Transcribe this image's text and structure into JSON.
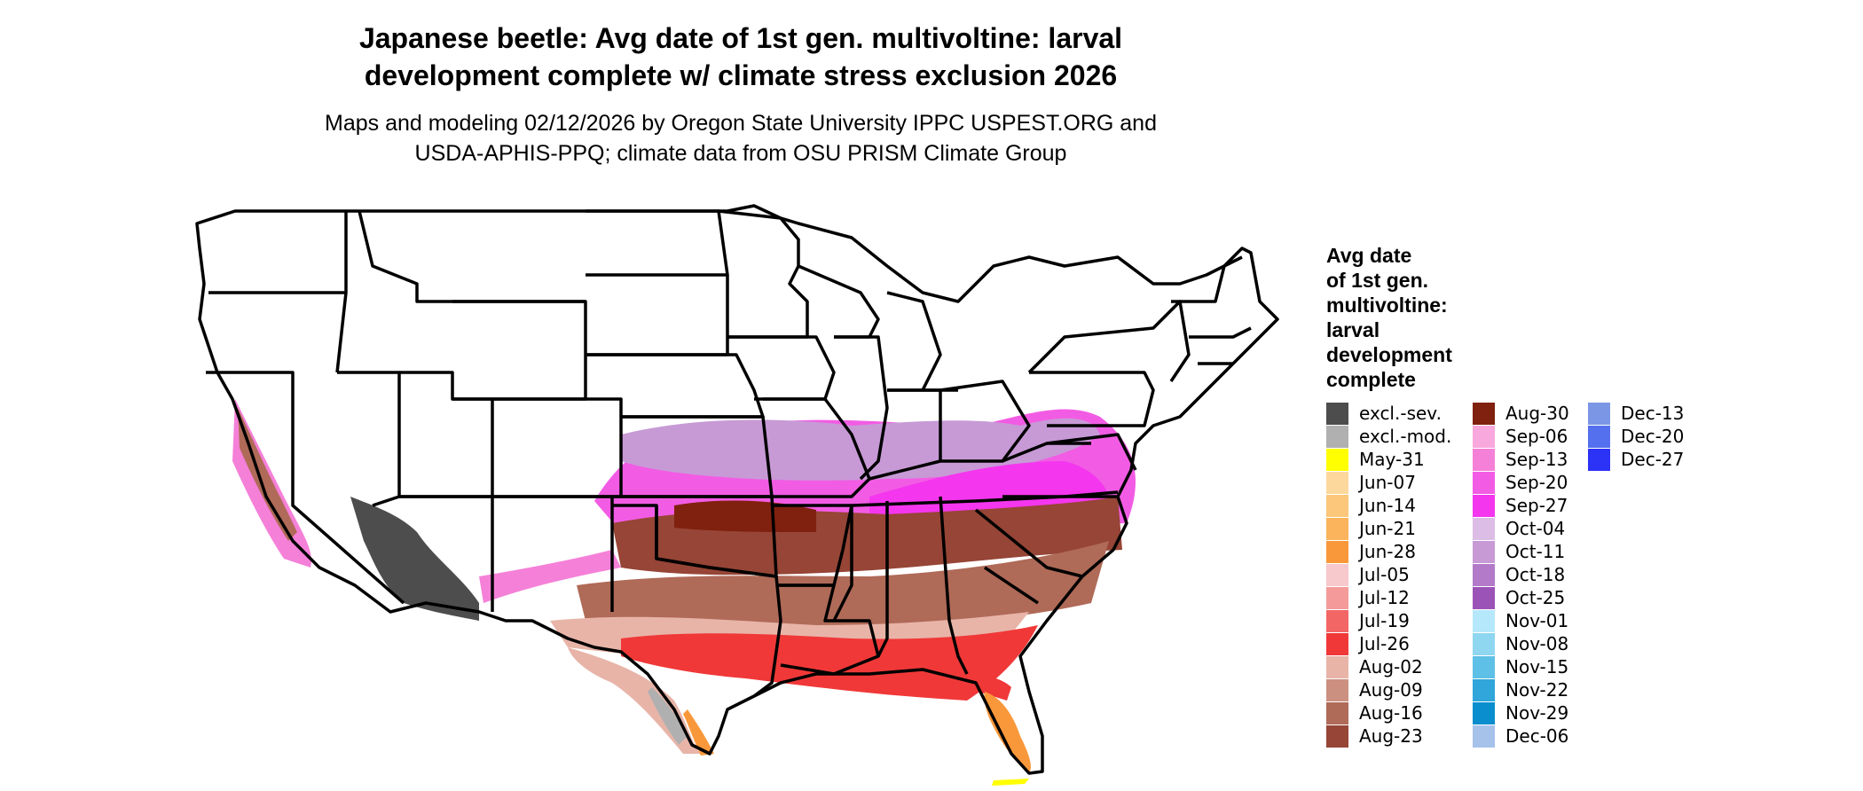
{
  "title_line1": "Japanese beetle: Avg date of 1st gen. multivoltine: larval",
  "title_line2": "development complete w/ climate stress exclusion 2026",
  "subtitle_line1": "Maps and modeling 02/12/2026 by Oregon State University IPPC USPEST.ORG and",
  "subtitle_line2": "USDA-APHIS-PPQ; climate data from OSU PRISM Climate Group",
  "legend": {
    "title": "Avg date\nof 1st gen.\nmultivoltine:\nlarval\ndevelopment\ncomplete",
    "items": [
      {
        "label": "excl.-sev.",
        "color": "#4d4d4d"
      },
      {
        "label": "excl.-mod.",
        "color": "#b0b0b0"
      },
      {
        "label": "May-31",
        "color": "#ffff00"
      },
      {
        "label": "Jun-07",
        "color": "#fdd89c"
      },
      {
        "label": "Jun-14",
        "color": "#fcc77a"
      },
      {
        "label": "Jun-21",
        "color": "#fbb45b"
      },
      {
        "label": "Jun-28",
        "color": "#f9983a"
      },
      {
        "label": "Jul-05",
        "color": "#f7c8cc"
      },
      {
        "label": "Jul-12",
        "color": "#f49a9a"
      },
      {
        "label": "Jul-19",
        "color": "#f36666"
      },
      {
        "label": "Jul-26",
        "color": "#f03838"
      },
      {
        "label": "Aug-02",
        "color": "#e8b4a8"
      },
      {
        "label": "Aug-09",
        "color": "#cc9080"
      },
      {
        "label": "Aug-16",
        "color": "#b06a58"
      },
      {
        "label": "Aug-23",
        "color": "#964536"
      },
      {
        "label": "Aug-30",
        "color": "#80200e"
      },
      {
        "label": "Sep-06",
        "color": "#f8a8dc"
      },
      {
        "label": "Sep-13",
        "color": "#f580d8"
      },
      {
        "label": "Sep-20",
        "color": "#f25ce4"
      },
      {
        "label": "Sep-27",
        "color": "#f436ee"
      },
      {
        "label": "Oct-04",
        "color": "#dbbde6"
      },
      {
        "label": "Oct-11",
        "color": "#c79ad6"
      },
      {
        "label": "Oct-18",
        "color": "#b27ac8"
      },
      {
        "label": "Oct-25",
        "color": "#9b53b8"
      },
      {
        "label": "Nov-01",
        "color": "#b6e8fb"
      },
      {
        "label": "Nov-08",
        "color": "#8fd6f1"
      },
      {
        "label": "Nov-15",
        "color": "#5ec0e6"
      },
      {
        "label": "Nov-22",
        "color": "#30a6da"
      },
      {
        "label": "Nov-29",
        "color": "#0a8ecd"
      },
      {
        "label": "Dec-06",
        "color": "#a6c2ea"
      },
      {
        "label": "Dec-13",
        "color": "#7c96e6"
      },
      {
        "label": "Dec-20",
        "color": "#5470ee"
      },
      {
        "label": "Dec-27",
        "color": "#2c32f6"
      }
    ]
  }
}
